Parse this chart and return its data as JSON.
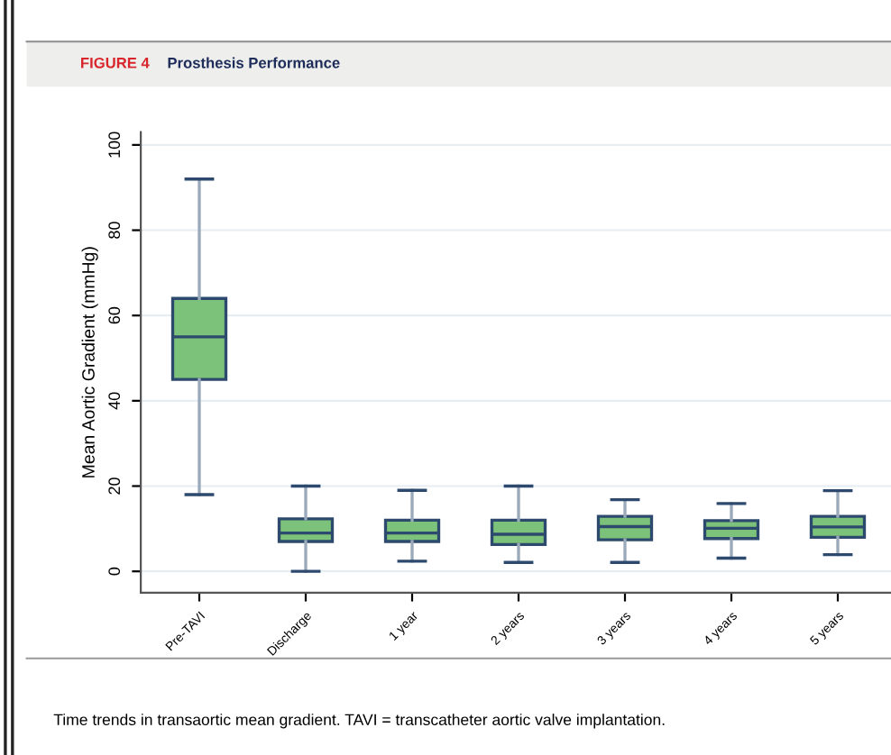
{
  "chart_data": {
    "type": "box",
    "title": "FIGURE 4",
    "subtitle": "Prosthesis Performance",
    "ylabel": "Mean Aortic Gradient (mmHg)",
    "categories": [
      "Pre-TAVI",
      "Discharge",
      "1 year",
      "2 years",
      "3 years",
      "4 years",
      "5 years"
    ],
    "boxes": [
      {
        "low": 18,
        "q1": 45,
        "median": 55,
        "q3": 64,
        "high": 92
      },
      {
        "low": 0,
        "q1": 7,
        "median": 9,
        "q3": 12.3,
        "high": 20
      },
      {
        "low": 2.4,
        "q1": 7,
        "median": 9,
        "q3": 12,
        "high": 19
      },
      {
        "low": 2.1,
        "q1": 6.3,
        "median": 8.7,
        "q3": 12,
        "high": 20
      },
      {
        "low": 2.1,
        "q1": 7.4,
        "median": 10.5,
        "q3": 12.9,
        "high": 16.8
      },
      {
        "low": 3.1,
        "q1": 7.7,
        "median": 10.1,
        "q3": 11.9,
        "high": 15.9
      },
      {
        "low": 3.9,
        "q1": 8,
        "median": 10.4,
        "q3": 12.9,
        "high": 18.9
      }
    ],
    "color": "#7cc27a",
    "ylim": [
      -5,
      103
    ],
    "yticks": [
      0,
      20,
      40,
      60,
      80,
      100
    ],
    "grid": "y",
    "annotations": [
      "Time trends in transaortic mean gradient. TAVI = transcatheter aortic valve implantation."
    ]
  }
}
